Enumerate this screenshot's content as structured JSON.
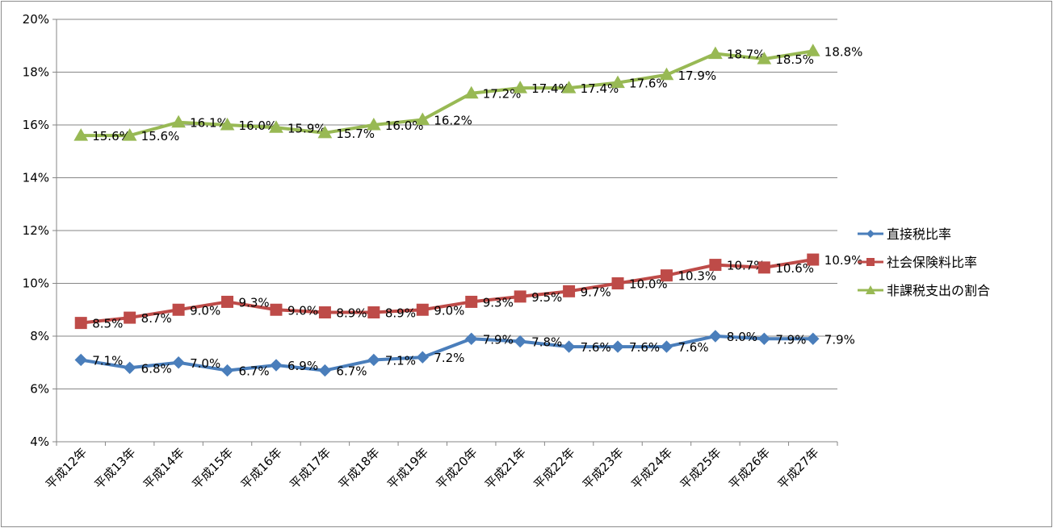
{
  "chart_data": {
    "type": "line",
    "title": "",
    "xlabel": "",
    "ylabel": "",
    "ylim": [
      4,
      20
    ],
    "y_ticks": [
      "4%",
      "6%",
      "8%",
      "10%",
      "12%",
      "14%",
      "16%",
      "18%",
      "20%"
    ],
    "categories": [
      "平成12年",
      "平成13年",
      "平成14年",
      "平成15年",
      "平成16年",
      "平成17年",
      "平成18年",
      "平成19年",
      "平成20年",
      "平成21年",
      "平成22年",
      "平成23年",
      "平成24年",
      "平成25年",
      "平成26年",
      "平成27年"
    ],
    "grid": true,
    "legend_position": "right",
    "series": [
      {
        "name": "直接税比率",
        "color": "#4a7ebb",
        "marker": "diamond",
        "values": [
          7.1,
          6.8,
          7.0,
          6.7,
          6.9,
          6.7,
          7.1,
          7.2,
          7.9,
          7.8,
          7.6,
          7.6,
          7.6,
          8.0,
          7.9,
          7.9
        ],
        "labels": [
          "7.1%",
          "6.8%",
          "7.0%",
          "6.7%",
          "6.9%",
          "6.7%",
          "7.1%",
          "7.2%",
          "7.9%",
          "7.8%",
          "7.6%",
          "7.6%",
          "7.6%",
          "8.0%",
          "7.9%",
          "7.9%"
        ]
      },
      {
        "name": "社会保険料比率",
        "color": "#be4b48",
        "marker": "square",
        "values": [
          8.5,
          8.7,
          9.0,
          9.3,
          9.0,
          8.9,
          8.9,
          9.0,
          9.3,
          9.5,
          9.7,
          10.0,
          10.3,
          10.7,
          10.6,
          10.9
        ],
        "labels": [
          "8.5%",
          "8.7%",
          "9.0%",
          "9.3%",
          "9.0%",
          "8.9%",
          "8.9%",
          "9.0%",
          "9.3%",
          "9.5%",
          "9.7%",
          "10.0%",
          "10.3%",
          "10.7%",
          "10.6%",
          "10.9%"
        ]
      },
      {
        "name": "非課税支出の割合",
        "color": "#98b954",
        "marker": "triangle",
        "values": [
          15.6,
          15.6,
          16.1,
          16.0,
          15.9,
          15.7,
          16.0,
          16.2,
          17.2,
          17.4,
          17.4,
          17.6,
          17.9,
          18.7,
          18.5,
          18.8
        ],
        "labels": [
          "15.6%",
          "15.6%",
          "16.1%",
          "16.0%",
          "15.9%",
          "15.7%",
          "16.0%",
          "16.2%",
          "17.2%",
          "17.4%",
          "17.4%",
          "17.6%",
          "17.9%",
          "18.7%",
          "18.5%",
          "18.8%"
        ]
      }
    ]
  }
}
